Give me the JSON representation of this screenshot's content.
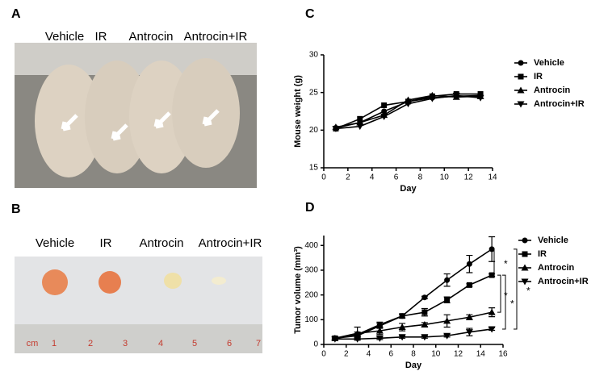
{
  "photo_panels": [
    {
      "label": "A",
      "captions": [
        "Vehicle",
        "IR",
        "Antrocin",
        "Antrocin+IR"
      ]
    },
    {
      "label": "B",
      "captions": [
        "Vehicle",
        "IR",
        "Antrocin",
        "Antrocin+IR"
      ],
      "ruler_labels": [
        "cm",
        "1",
        "2",
        "3",
        "4",
        "5",
        "6",
        "7"
      ]
    }
  ],
  "chart_data": [
    {
      "type": "line",
      "panel_label": "C",
      "xlabel": "Day",
      "ylabel": "Mouse weight (g)",
      "xlim": [
        0,
        14
      ],
      "xticks": [
        0,
        2,
        4,
        6,
        8,
        10,
        12,
        14
      ],
      "ylim": [
        15,
        30
      ],
      "yticks": [
        15,
        20,
        25,
        30
      ],
      "x": [
        1,
        3,
        5,
        7,
        9,
        11,
        13
      ],
      "series": [
        {
          "name": "Vehicle",
          "color": "#000",
          "marker": "circle",
          "values": [
            20.3,
            21.0,
            22.5,
            23.8,
            24.3,
            24.5,
            24.6
          ]
        },
        {
          "name": "IR",
          "color": "#000",
          "marker": "square",
          "values": [
            20.2,
            21.5,
            23.3,
            23.8,
            24.5,
            24.8,
            24.8
          ]
        },
        {
          "name": "Antrocin",
          "color": "#000",
          "marker": "triangle",
          "values": [
            20.4,
            21.0,
            22.0,
            24.0,
            24.6,
            24.4,
            24.5
          ]
        },
        {
          "name": "Antrocin+IR",
          "color": "#000",
          "marker": "triangle-down",
          "values": [
            20.2,
            20.5,
            21.8,
            23.5,
            24.2,
            24.6,
            24.3
          ]
        }
      ]
    },
    {
      "type": "line",
      "panel_label": "D",
      "xlabel": "Day",
      "ylabel": "Tumor volume (mm³)",
      "xlim": [
        0,
        16
      ],
      "xticks": [
        0,
        2,
        4,
        6,
        8,
        10,
        12,
        14,
        16
      ],
      "ylim": [
        0,
        440
      ],
      "yticks": [
        0,
        100,
        200,
        300,
        400
      ],
      "x": [
        1,
        3,
        5,
        7,
        9,
        11,
        13,
        15
      ],
      "series": [
        {
          "name": "Vehicle",
          "color": "#000",
          "marker": "circle",
          "values": [
            25,
            40,
            80,
            115,
            190,
            260,
            325,
            385
          ],
          "errors": [
            5,
            10,
            10,
            8,
            5,
            25,
            35,
            50
          ]
        },
        {
          "name": "IR",
          "color": "#000",
          "marker": "square",
          "values": [
            25,
            35,
            75,
            115,
            130,
            180,
            240,
            280
          ],
          "errors": [
            5,
            8,
            10,
            8,
            15,
            12,
            5,
            5
          ]
        },
        {
          "name": "Antrocin",
          "color": "#000",
          "marker": "triangle",
          "values": [
            25,
            45,
            55,
            70,
            80,
            95,
            110,
            130
          ],
          "errors": [
            5,
            25,
            15,
            15,
            8,
            25,
            10,
            18
          ]
        },
        {
          "name": "Antrocin+IR",
          "color": "#000",
          "marker": "triangle-down",
          "values": [
            22,
            22,
            25,
            30,
            30,
            35,
            50,
            62
          ],
          "errors": [
            3,
            5,
            5,
            5,
            5,
            5,
            15,
            5
          ]
        }
      ],
      "annotations": [
        "*",
        "*",
        "*",
        "*"
      ]
    }
  ]
}
